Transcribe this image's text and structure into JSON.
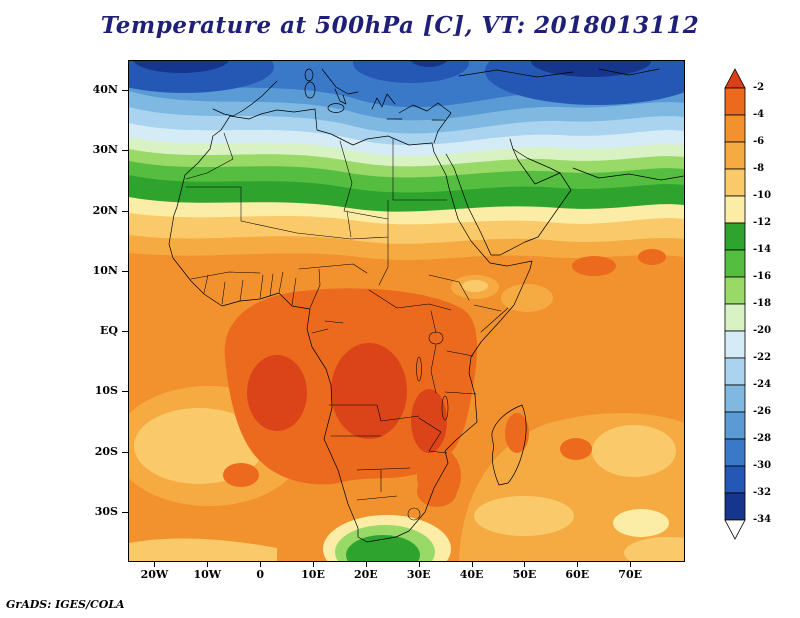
{
  "title": "Temperature at 500hPa [C], VT: 2018013112",
  "credit": "GrADS: IGES/COLA",
  "axes": {
    "lat_tick_labels": [
      "40N",
      "30N",
      "20N",
      "10N",
      "EQ",
      "10S",
      "20S",
      "30S"
    ],
    "lon_tick_labels": [
      "20W",
      "10W",
      "0",
      "10E",
      "20E",
      "30E",
      "40E",
      "50E",
      "60E",
      "70E"
    ]
  },
  "colorbar": {
    "labels": [
      "-2",
      "-4",
      "-6",
      "-8",
      "-10",
      "-12",
      "-14",
      "-16",
      "-18",
      "-20",
      "-22",
      "-24",
      "-26",
      "-28",
      "-30",
      "-32",
      "-34"
    ],
    "segment_colors": [
      "#ec6a1e",
      "#f2922e",
      "#f6ab42",
      "#f9c96a",
      "#fceda6",
      "#2ea32e",
      "#55bd40",
      "#98d968",
      "#d9f2c4",
      "#d5ecf7",
      "#a9d3ee",
      "#7fb9e2",
      "#5a9bd6",
      "#3a78c8",
      "#2558b4",
      "#16368e"
    ],
    "top_arrow_color": "#d94018",
    "bottom_arrow_color": "#ffffff"
  },
  "chart_data": {
    "type": "heatmap",
    "title": "Temperature at 500hPa [C]",
    "variable": "Temperature",
    "level_hPa": 500,
    "units": "C",
    "valid_time": "2018013112",
    "lon_range_deg": [
      -25,
      80
    ],
    "lat_range_deg": [
      -38,
      45
    ],
    "contour_interval_C": 2,
    "shade_levels_C": [
      -34,
      -32,
      -30,
      -28,
      -26,
      -24,
      -22,
      -20,
      -18,
      -16,
      -14,
      -12,
      -10,
      -8,
      -6,
      -4,
      -2
    ],
    "palette_warm_to_cold": [
      "#ec6a1e",
      "#f2922e",
      "#f6ab42",
      "#f9c96a",
      "#fceda6",
      "#2ea32e",
      "#55bd40",
      "#98d968",
      "#d9f2c4",
      "#d5ecf7",
      "#a9d3ee",
      "#7fb9e2",
      "#5a9bd6",
      "#3a78c8",
      "#2558b4",
      "#16368e"
    ],
    "approx_zonal_mean_C": [
      {
        "lat": 42,
        "t": -26
      },
      {
        "lat": 36,
        "t": -21
      },
      {
        "lat": 30,
        "t": -17
      },
      {
        "lat": 25,
        "t": -13
      },
      {
        "lat": 20,
        "t": -11
      },
      {
        "lat": 15,
        "t": -9
      },
      {
        "lat": 10,
        "t": -7
      },
      {
        "lat": 5,
        "t": -6
      },
      {
        "lat": 0,
        "t": -4
      },
      {
        "lat": -5,
        "t": -4
      },
      {
        "lat": -10,
        "t": -4
      },
      {
        "lat": -15,
        "t": -5
      },
      {
        "lat": -20,
        "t": -6
      },
      {
        "lat": -25,
        "t": -7
      },
      {
        "lat": -30,
        "t": -7
      },
      {
        "lat": -35,
        "t": -9
      },
      {
        "lat": -38,
        "t": -12
      }
    ],
    "notable_features": [
      "Warm core (-2 to -4 C) over the Congo Basin, Angola and equatorial Atlantic",
      "Zonal green band (-12 to -16 C) across the Sahara near 20-26N",
      "Cold pool (-24 to -34 C) over Iberia, the Mediterranean and Black Sea region",
      "Green patch (-12 to -16 C) in the ocean south of South Africa near 38S"
    ],
    "legend_position": "right",
    "grid": false
  }
}
